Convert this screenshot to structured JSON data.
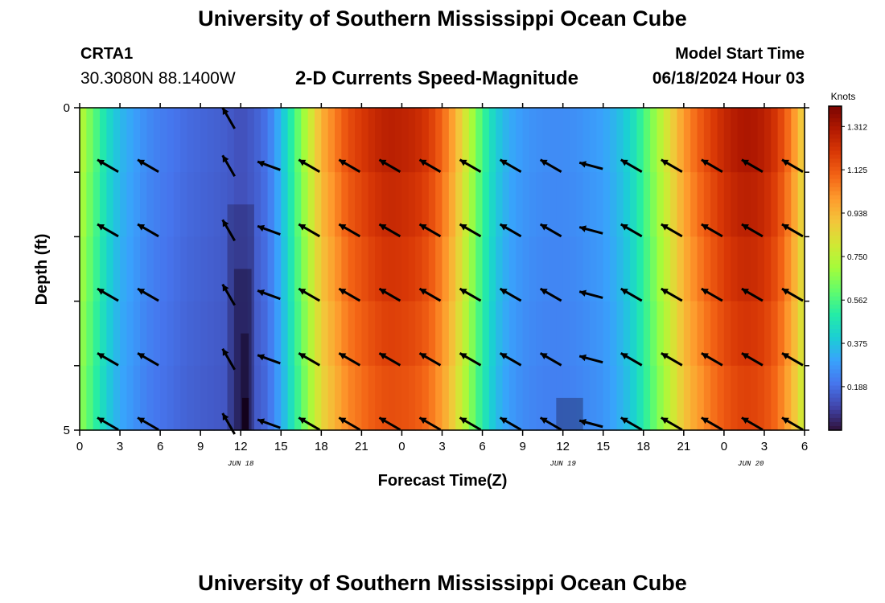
{
  "header": {
    "title": "University of Southern Mississippi Ocean Cube",
    "station_id": "CRTA1",
    "station_coords": "30.3080N  88.1400W",
    "subtitle": "2-D Currents Speed-Magnitude",
    "model_start_label": "Model Start Time",
    "model_start_value": "06/18/2024 Hour 03"
  },
  "footer": {
    "title": "University of Southern Mississippi Ocean Cube"
  },
  "chart_data": {
    "type": "heatmap",
    "xlabel": "Forecast Time(Z)",
    "ylabel": "Depth (ft)",
    "x_ticks": [
      "0",
      "3",
      "6",
      "9",
      "12",
      "15",
      "18",
      "21",
      "0",
      "3",
      "6",
      "9",
      "12",
      "15",
      "18",
      "21",
      "0",
      "3",
      "6"
    ],
    "date_labels": [
      {
        "label": "JUN 18",
        "at_hour": 12
      },
      {
        "label": "JUN 19",
        "at_hour": 36
      },
      {
        "label": "JUN 20",
        "at_hour": 50
      }
    ],
    "x_range_hours": [
      0,
      54
    ],
    "y_range": [
      0,
      5
    ],
    "y_tick_labels": [
      "0",
      "",
      "",
      "",
      "",
      "5"
    ],
    "depth_levels": 5,
    "colorbar": {
      "unit": "Knots",
      "ticks": [
        "1.312",
        "1.125",
        "0.938",
        "0.750",
        "0.562",
        "0.375",
        "0.188"
      ],
      "range": [
        0.0,
        1.4
      ],
      "colors": [
        "#30123b",
        "#4145ab",
        "#4675ed",
        "#39a2fc",
        "#1bcfd4",
        "#24eca6",
        "#61fc6c",
        "#a4fc3b",
        "#d1e834",
        "#f3c63a",
        "#fe9b2d",
        "#f36315",
        "#d93806",
        "#b11901",
        "#7a0402"
      ]
    },
    "speed_profile_hours": [
      0,
      1,
      2,
      3,
      4,
      5,
      6,
      7,
      8,
      9,
      10,
      11,
      12,
      13,
      14,
      15,
      16,
      17,
      18,
      19,
      20,
      21,
      22,
      23,
      24,
      25,
      26,
      27,
      28,
      29,
      30,
      31,
      32,
      33,
      34,
      35,
      36,
      37,
      38,
      39,
      40,
      41,
      42,
      43,
      44,
      45,
      46,
      47,
      48,
      49,
      50,
      51,
      52,
      53,
      54
    ],
    "speed_profile_knots": [
      0.75,
      0.6,
      0.45,
      0.35,
      0.3,
      0.25,
      0.22,
      0.2,
      0.18,
      0.17,
      0.16,
      0.15,
      0.12,
      0.15,
      0.2,
      0.35,
      0.55,
      0.75,
      0.95,
      1.05,
      1.15,
      1.2,
      1.25,
      1.28,
      1.27,
      1.25,
      1.2,
      1.1,
      0.95,
      0.75,
      0.55,
      0.4,
      0.32,
      0.28,
      0.26,
      0.25,
      0.25,
      0.26,
      0.28,
      0.3,
      0.35,
      0.42,
      0.55,
      0.7,
      0.85,
      1.0,
      1.1,
      1.18,
      1.25,
      1.3,
      1.31,
      1.28,
      1.2,
      1.05,
      0.85
    ],
    "arrows": {
      "hours": [
        1.5,
        4.5,
        10.5,
        13.5,
        16.5,
        19.5,
        22.5,
        25.5,
        28.5,
        31.5,
        34.5,
        37.5,
        40.5,
        43.5,
        46.5,
        49.5,
        52.5
      ],
      "direction_deg": [
        120,
        120,
        150,
        110,
        120,
        120,
        120,
        120,
        120,
        120,
        120,
        105,
        120,
        120,
        120,
        120,
        120
      ]
    }
  }
}
